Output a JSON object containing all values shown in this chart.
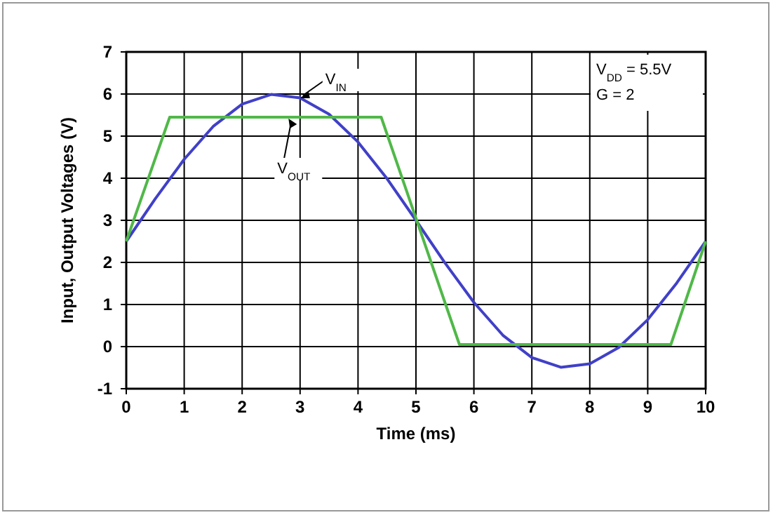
{
  "chart_data": {
    "type": "line",
    "xlabel": "Time (ms)",
    "ylabel": "Input, Output Voltages (V)",
    "xlim": [
      0,
      10
    ],
    "ylim": [
      -1,
      7
    ],
    "xticks": [
      0,
      1,
      2,
      3,
      4,
      5,
      6,
      7,
      8,
      9,
      10
    ],
    "yticks": [
      -1,
      0,
      1,
      2,
      3,
      4,
      5,
      6,
      7
    ],
    "grid": true,
    "series": [
      {
        "color": "#4040c8",
        "x": [
          0,
          0.5,
          1,
          1.5,
          2,
          2.5,
          3,
          3.5,
          4,
          4.5,
          5,
          5.5,
          6,
          6.5,
          7,
          7.5,
          8,
          8.5,
          9,
          9.5,
          10
        ],
        "values": [
          2.5,
          3.51,
          4.45,
          5.23,
          5.76,
          5.99,
          5.91,
          5.52,
          4.86,
          3.99,
          3.0,
          1.99,
          1.05,
          0.27,
          -0.26,
          -0.49,
          -0.41,
          -0.02,
          0.64,
          1.51,
          2.5
        ]
      },
      {
        "color": "#50b848",
        "x": [
          0,
          0.75,
          4.4,
          5.75,
          9.4,
          10
        ],
        "values": [
          2.5,
          5.45,
          5.45,
          0.05,
          0.05,
          2.5
        ]
      }
    ],
    "annotations": [
      {
        "text": "V$_{IN}$",
        "x": 3,
        "y": 5.9
      },
      {
        "text": "V$_{OUT}$",
        "x": 2.8,
        "y": 5.45
      },
      "V$_{DD}$ = 5.5V",
      "G = 2"
    ]
  }
}
